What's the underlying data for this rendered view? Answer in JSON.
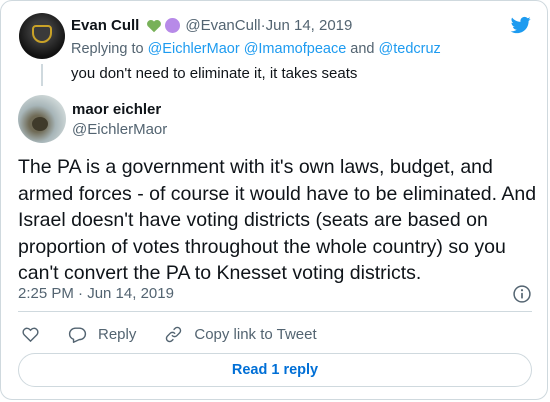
{
  "parent_tweet": {
    "name": "Evan Cull",
    "handle": "@EvanCull",
    "separator": " · ",
    "date": "Jun 14, 2019",
    "replying_prefix": "Replying to ",
    "replying_mentions": [
      "@EichlerMaor",
      "@Imamofpeace",
      "@tedcruz"
    ],
    "replying_and": " and ",
    "text": "you don't need to eliminate it, it takes seats",
    "emoji_colors": {
      "heart": "#78b159",
      "circle": "#b78ae8"
    }
  },
  "main_tweet": {
    "name": "maor eichler",
    "handle": "@EichlerMaor",
    "text": "The PA is a government with it's own laws, budget, and armed forces - of course it would have to be eliminated. And Israel doesn't have voting districts (seats are based on proportion of votes throughout the whole country) so you can't convert the PA to Knesset voting districts.",
    "timestamp": "2:25 PM · Jun 14, 2019"
  },
  "actions": {
    "reply_label": "Reply",
    "copy_link_label": "Copy link to Tweet"
  },
  "read_replies_label": "Read 1 reply",
  "colors": {
    "accent": "#1d9bf0",
    "link_blue": "#006fd6",
    "secondary_text": "#536471",
    "border": "#cfd9de"
  },
  "icons": {
    "brand": "twitter-bird-icon",
    "info": "info-icon",
    "like": "heart-outline-icon",
    "reply": "speech-bubble-icon",
    "copy_link": "link-icon"
  }
}
